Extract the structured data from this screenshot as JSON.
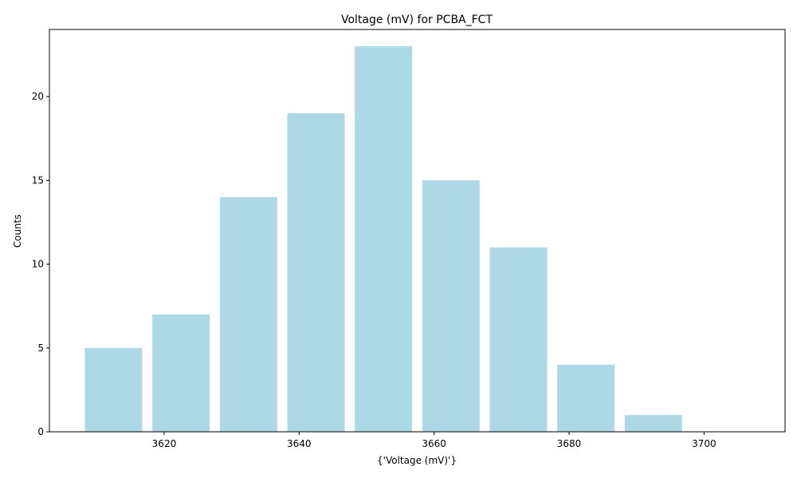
{
  "chart_data": {
    "type": "bar",
    "title": "Voltage (mV) for PCBA_FCT",
    "xlabel": "{'Voltage (mV)'}",
    "ylabel": "Counts",
    "x": [
      3612.5,
      3622.5,
      3632.5,
      3642.5,
      3652.5,
      3662.5,
      3672.5,
      3682.5,
      3692.5
    ],
    "bin_width": 10,
    "values": [
      5,
      7,
      14,
      19,
      23,
      15,
      11,
      4,
      1
    ],
    "xlim": [
      3603,
      3712
    ],
    "ylim": [
      0,
      24
    ],
    "x_ticks": [
      3620,
      3640,
      3660,
      3680,
      3700
    ],
    "y_ticks": [
      0,
      5,
      10,
      15,
      20
    ],
    "bar_color": "#add8e6",
    "grid": false
  }
}
